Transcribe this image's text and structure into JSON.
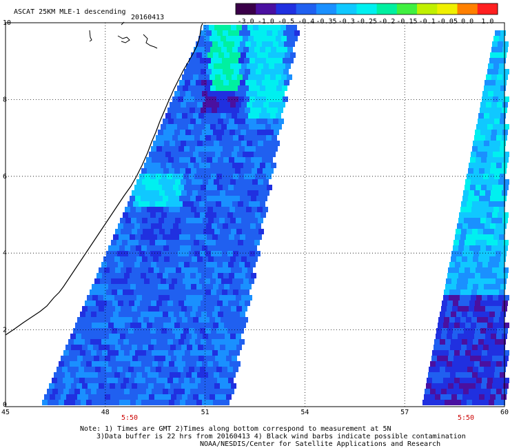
{
  "title": "ASCAT 25KM MLE-1 descending",
  "date": "20160413",
  "colorbar": {
    "tick_labels": [
      "-3.0",
      "-1.0",
      "-0.5",
      "-0.4",
      "-0.35",
      "-0.3",
      "-0.25",
      "-0.2",
      "-0.15",
      "-0.1",
      "-0.05",
      "0.0",
      "1.0"
    ],
    "colors": [
      "#3a0048",
      "#4a10a0",
      "#2030e0",
      "#2060f0",
      "#1a90ff",
      "#10c8ff",
      "#00f0f0",
      "#00f0a0",
      "#40f040",
      "#c0f000",
      "#f0f000",
      "#ff8000",
      "#ff2020"
    ]
  },
  "axes": {
    "x_ticks": [
      "45",
      "48",
      "51",
      "54",
      "57",
      "60"
    ],
    "y_ticks": [
      "0",
      "2",
      "4",
      "6",
      "8",
      "10"
    ],
    "x_range": [
      45,
      60
    ],
    "y_range": [
      0,
      10
    ],
    "grid": "dotted"
  },
  "time_labels": [
    "5:50",
    "5:50"
  ],
  "notes": [
    "Note: 1) Times are GMT 2)Times along bottom correspond to measurement at 5N",
    "3)Data buffer is 22 hrs from 20160413 4) Black wind barbs indicate possible contamination",
    "NOAA/NESDIS/Center for Satellite Applications and Research"
  ],
  "colors": {
    "background": "#ffffff",
    "grid": "#000000",
    "coastline": "#000000",
    "time_label": "#cc0000"
  }
}
